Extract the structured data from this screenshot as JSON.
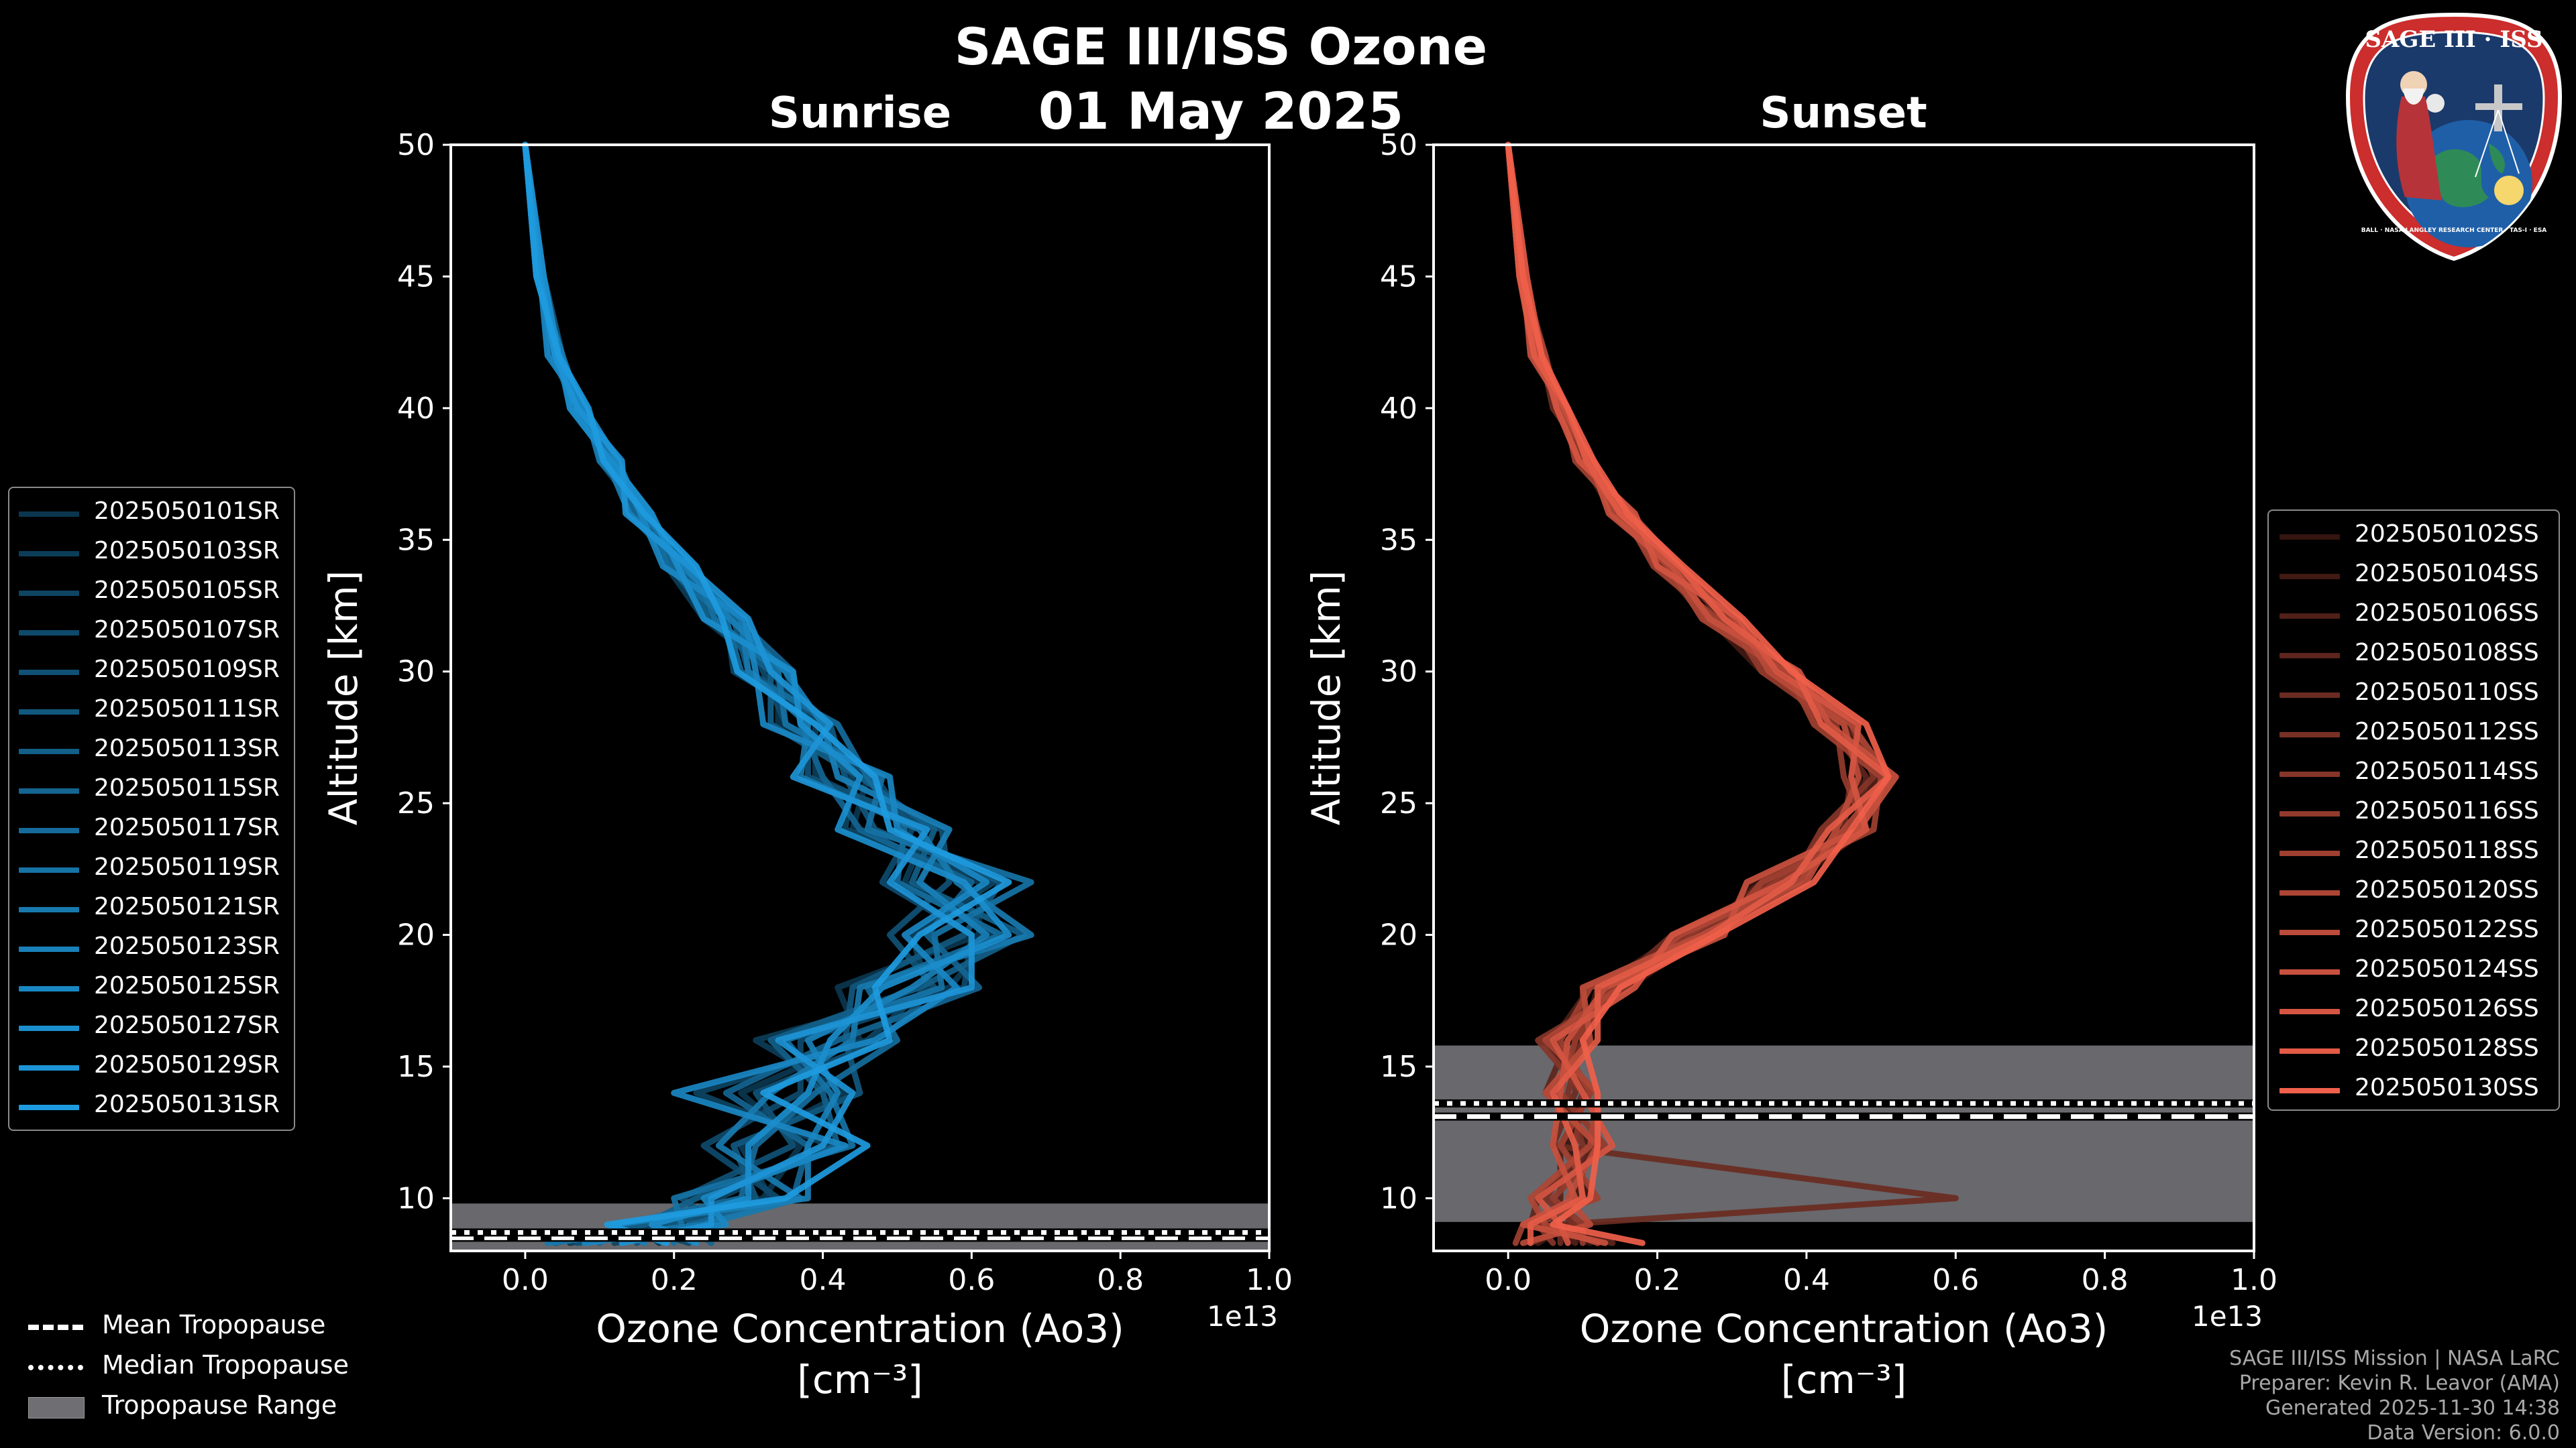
{
  "title": "SAGE III/ISS Ozone",
  "date": "01 May 2025",
  "logo": {
    "label": "SAGE III · ISS",
    "ring_text": "BALL · NASA LANGLEY RESEARCH CENTER · TAS-I · ESA"
  },
  "credits": {
    "mission": "SAGE III/ISS Mission | NASA LaRC",
    "preparer": "Preparer: Kevin R. Leavor (AMA)",
    "generated": "Generated 2025-11-30 14:38",
    "version": "Data Version: 6.0.0"
  },
  "colors": {
    "sunrise": "#1e9be0",
    "sunset": "#f0604a",
    "tropopause_fill": "#6e6e73"
  },
  "tropo_legend": [
    {
      "label": "Mean Tropopause",
      "style": "dashed"
    },
    {
      "label": "Median Tropopause",
      "style": "dotted"
    },
    {
      "label": "Tropopause Range",
      "style": "patch"
    }
  ],
  "chart_data": [
    {
      "panel": "sunrise",
      "type": "line",
      "title": "Sunrise",
      "xlabel": "Ozone Concentration (Ao3)",
      "xunit": "[cm⁻³]",
      "xscale_label": "1e13",
      "ylabel": "Altitude [km]",
      "xlim": [
        -0.1,
        1.0
      ],
      "ylim": [
        8.0,
        50.0
      ],
      "xticks": [
        "0.0",
        "0.2",
        "0.4",
        "0.6",
        "0.8",
        "1.0"
      ],
      "xtick_values": [
        0.0,
        0.2,
        0.4,
        0.6,
        0.8,
        1.0
      ],
      "yticks": [
        "10",
        "15",
        "20",
        "25",
        "30",
        "35",
        "40",
        "45",
        "50"
      ],
      "ytick_values": [
        10,
        15,
        20,
        25,
        30,
        35,
        40,
        45,
        50
      ],
      "altitudes": [
        50,
        45,
        42,
        40,
        38,
        36,
        34,
        32,
        30,
        28,
        26,
        24,
        22,
        20,
        18,
        16,
        14,
        12,
        10,
        9,
        8.3
      ],
      "mean_profile": [
        0.0,
        0.02,
        0.04,
        0.07,
        0.11,
        0.15,
        0.2,
        0.26,
        0.31,
        0.36,
        0.42,
        0.49,
        0.55,
        0.57,
        0.5,
        0.4,
        0.35,
        0.34,
        0.28,
        0.18,
        0.1
      ],
      "tropopause": {
        "range": [
          8.0,
          9.8
        ],
        "mean": 8.5,
        "median": 8.7
      },
      "series": [
        {
          "name": "2025050101SR",
          "offsets": [
            0,
            0.005,
            -0.01,
            0.01,
            0.005,
            -0.005,
            0.01,
            0.02,
            0.03,
            -0.02,
            0.04,
            -0.05,
            0.06,
            0.04,
            -0.08,
            0.05,
            -0.06,
            0.03,
            0.04,
            -0.03,
            0.08
          ]
        },
        {
          "name": "2025050103SR",
          "offsets": [
            0,
            0,
            0.01,
            -0.005,
            0.01,
            0.01,
            -0.01,
            -0.02,
            0.02,
            0.03,
            -0.03,
            0.05,
            -0.04,
            0.06,
            0.07,
            -0.09,
            0.08,
            -0.05,
            0.05,
            0.02,
            -0.04
          ]
        },
        {
          "name": "2025050105SR",
          "offsets": [
            0,
            0.005,
            0,
            0.01,
            -0.01,
            0.005,
            0.02,
            0.01,
            -0.03,
            0.04,
            0.02,
            -0.06,
            0.08,
            -0.05,
            0.04,
            0.06,
            -0.12,
            0.07,
            -0.02,
            0.05,
            0.02
          ]
        },
        {
          "name": "2025050107SR",
          "offsets": [
            0,
            -0.005,
            0.005,
            0,
            0.01,
            -0.01,
            0.005,
            0.03,
            0.01,
            -0.01,
            0.05,
            0.03,
            -0.07,
            0.03,
            0.09,
            -0.03,
            0.02,
            -0.1,
            0.06,
            -0.04,
            0.12
          ]
        },
        {
          "name": "2025050109SR",
          "offsets": [
            0,
            0,
            -0.005,
            0.005,
            0,
            0.015,
            -0.005,
            -0.01,
            0.04,
            0.02,
            -0.04,
            0.07,
            0.02,
            -0.08,
            0.05,
            0.08,
            -0.04,
            0.02,
            -0.07,
            0.08,
            -0.03
          ]
        },
        {
          "name": "2025050111SR",
          "offsets": [
            0,
            0.005,
            0.01,
            -0.01,
            0.005,
            0,
            0.015,
            0.02,
            -0.01,
            0.05,
            0.01,
            -0.02,
            0.09,
            0.02,
            -0.06,
            0.03,
            0.1,
            -0.06,
            0.03,
            0.01,
            0.05
          ]
        },
        {
          "name": "2025050113SR",
          "offsets": [
            0,
            0,
            0,
            0.005,
            -0.005,
            0.01,
            0.02,
            -0.015,
            0.02,
            -0.03,
            0.03,
            0.06,
            -0.03,
            0.1,
            0.03,
            -0.07,
            0.05,
            0.08,
            -0.05,
            -0.02,
            -0.06
          ]
        },
        {
          "name": "2025050115SR",
          "offsets": [
            0,
            -0.005,
            0.005,
            0.01,
            0.015,
            -0.005,
            0,
            0.025,
            0.05,
            0.01,
            -0.02,
            -0.04,
            0.05,
            -0.03,
            0.11,
            0.02,
            -0.08,
            0.04,
            0.08,
            0.04,
            0.15
          ]
        },
        {
          "name": "2025050117SR",
          "offsets": [
            0,
            0.005,
            -0.005,
            0,
            0.005,
            0.02,
            -0.01,
            0.01,
            -0.02,
            0.06,
            0.04,
            0.02,
            -0.05,
            0.07,
            -0.04,
            0.1,
            0.04,
            -0.03,
            0.01,
            -0.05,
            0.0
          ]
        },
        {
          "name": "2025050119SR",
          "offsets": [
            0,
            0,
            0.005,
            -0.005,
            0.01,
            0.005,
            0.025,
            -0.005,
            0.03,
            -0.01,
            0.06,
            -0.03,
            0.13,
            -0.02,
            0.06,
            -0.05,
            0.06,
            0.1,
            -0.08,
            0.03,
            0.1
          ]
        },
        {
          "name": "2025050121SR",
          "offsets": [
            0,
            0.005,
            0,
            0.01,
            -0.01,
            0.015,
            0.01,
            0.03,
            -0.01,
            0.02,
            -0.05,
            0.04,
            0.03,
            0.11,
            -0.05,
            0.04,
            -0.02,
            -0.08,
            0.09,
            0.06,
            -0.07
          ]
        },
        {
          "name": "2025050123SR",
          "offsets": [
            0,
            -0.005,
            0.01,
            0.005,
            0,
            -0.01,
            0.015,
            0.015,
            0.04,
            0.04,
            0.0,
            0.08,
            -0.02,
            0.05,
            0.02,
            -0.02,
            0.07,
            0.04,
            0.1,
            -0.06,
            0.06
          ]
        },
        {
          "name": "2025050125SR",
          "offsets": [
            0,
            0,
            -0.01,
            0.01,
            0.015,
            0.005,
            -0.015,
            0.035,
            0.0,
            -0.04,
            0.07,
            0.01,
            0.07,
            -0.06,
            0.08,
            0.07,
            -0.15,
            0.09,
            -0.04,
            0.09,
            -0.02
          ]
        },
        {
          "name": "2025050127SR",
          "offsets": [
            0,
            0.005,
            0.005,
            -0.01,
            0.005,
            0.02,
            0.005,
            -0.02,
            0.05,
            0.01,
            0.03,
            -0.07,
            0.04,
            0.08,
            -0.02,
            0.01,
            0.03,
            -0.04,
            0.02,
            -0.01,
            0.13
          ]
        },
        {
          "name": "2025050129SR",
          "offsets": [
            0,
            0,
            0,
            0,
            0.02,
            -0.015,
            0.02,
            0.04,
            0.02,
            0.05,
            -0.06,
            0.05,
            -0.06,
            0.03,
            0.1,
            -0.06,
            0.09,
            0.06,
            -0.03,
            0.07,
            0.03
          ]
        },
        {
          "name": "2025050131SR",
          "offsets": [
            0,
            -0.005,
            0.005,
            0.015,
            -0.005,
            0.01,
            0.03,
            0.005,
            -0.025,
            0.03,
            0.05,
            0.0,
            0.1,
            -0.04,
            -0.03,
            0.09,
            -0.03,
            0.12,
            0.07,
            -0.07,
            0.09
          ]
        }
      ]
    },
    {
      "panel": "sunset",
      "type": "line",
      "title": "Sunset",
      "xlabel": "Ozone Concentration (Ao3)",
      "xunit": "[cm⁻³]",
      "xscale_label": "1e13",
      "ylabel": "Altitude [km]",
      "xlim": [
        -0.1,
        1.0
      ],
      "ylim": [
        8.0,
        50.0
      ],
      "xticks": [
        "0.0",
        "0.2",
        "0.4",
        "0.6",
        "0.8",
        "1.0"
      ],
      "xtick_values": [
        0.0,
        0.2,
        0.4,
        0.6,
        0.8,
        1.0
      ],
      "yticks": [
        "10",
        "15",
        "20",
        "25",
        "30",
        "35",
        "40",
        "45",
        "50"
      ],
      "ytick_values": [
        10,
        15,
        20,
        25,
        30,
        35,
        40,
        45,
        50
      ],
      "altitudes": [
        50,
        45,
        42,
        40,
        38,
        36,
        34,
        32,
        30,
        28,
        26,
        24,
        22,
        20,
        18,
        16,
        14,
        12,
        10,
        9,
        8.3
      ],
      "mean_profile": [
        0.0,
        0.02,
        0.04,
        0.07,
        0.1,
        0.15,
        0.21,
        0.28,
        0.36,
        0.44,
        0.48,
        0.45,
        0.36,
        0.25,
        0.13,
        0.07,
        0.08,
        0.09,
        0.07,
        0.05,
        0.06
      ],
      "tropopause": {
        "range": [
          9.1,
          15.8
        ],
        "mean": 13.1,
        "median": 13.6
      },
      "series": [
        {
          "name": "2025050102SS",
          "offsets": [
            0,
            0.005,
            0,
            0.005,
            -0.005,
            0.01,
            -0.01,
            0.02,
            0.01,
            -0.02,
            0.02,
            0.01,
            -0.03,
            0.02,
            0.03,
            -0.02,
            0.02,
            -0.01,
            0.04,
            -0.02,
            0.05
          ]
        },
        {
          "name": "2025050104SS",
          "offsets": [
            0,
            0,
            0.005,
            -0.005,
            0.01,
            0.005,
            0.01,
            -0.01,
            -0.02,
            0.02,
            -0.01,
            0.03,
            0.02,
            -0.02,
            -0.01,
            0.03,
            -0.02,
            0.02,
            0.02,
            0.03,
            -0.02
          ]
        },
        {
          "name": "2025050106SS",
          "offsets": [
            0,
            -0.005,
            0,
            0.005,
            0,
            -0.01,
            0.015,
            0.01,
            0.02,
            0.01,
            0.02,
            -0.02,
            0.01,
            0.03,
            -0.02,
            -0.01,
            0.03,
            -0.02,
            0.0,
            0.01,
            0.03
          ]
        },
        {
          "name": "2025050108SS",
          "offsets": [
            0,
            0,
            -0.005,
            0.01,
            0.005,
            0.005,
            -0.005,
            -0.015,
            0.03,
            -0.01,
            0.0,
            0.02,
            -0.02,
            0.01,
            0.02,
            0.01,
            -0.03,
            0.03,
            -0.03,
            -0.02,
            0.08
          ]
        },
        {
          "name": "2025050110SS",
          "offsets": [
            0,
            0.005,
            0.005,
            -0.01,
            0.01,
            -0.005,
            0.02,
            0.005,
            -0.01,
            0.03,
            -0.02,
            0.0,
            0.03,
            -0.03,
            0.01,
            0.02,
            0.01,
            -0.03,
            0.53,
            0.02,
            0.01
          ]
        },
        {
          "name": "2025050112SS",
          "offsets": [
            0,
            0,
            0.01,
            0,
            -0.005,
            0.015,
            0.0,
            0.02,
            0.0,
            -0.02,
            0.03,
            0.02,
            -0.01,
            0.02,
            -0.03,
            0.03,
            0.0,
            0.01,
            -0.02,
            0.04,
            -0.03
          ]
        },
        {
          "name": "2025050114SS",
          "offsets": [
            0,
            -0.005,
            0,
            0.005,
            0.005,
            0.0,
            -0.01,
            -0.005,
            0.02,
            0.02,
            0.01,
            -0.03,
            0.02,
            0.0,
            0.03,
            -0.03,
            0.02,
            0.0,
            0.03,
            -0.01,
            0.0
          ]
        },
        {
          "name": "2025050116SS",
          "offsets": [
            0,
            0.005,
            -0.005,
            0,
            0.0,
            0.01,
            0.01,
            0.015,
            -0.02,
            0.0,
            -0.03,
            0.03,
            0.0,
            -0.01,
            0.01,
            0.02,
            -0.01,
            0.04,
            -0.01,
            0.05,
            0.04
          ]
        },
        {
          "name": "2025050118SS",
          "offsets": [
            0,
            0,
            0.005,
            0.005,
            -0.01,
            0.005,
            -0.015,
            0.0,
            0.015,
            -0.03,
            0.02,
            0.04,
            -0.02,
            0.03,
            -0.02,
            0.0,
            0.03,
            -0.02,
            0.05,
            -0.03,
            -0.05
          ]
        },
        {
          "name": "2025050120SS",
          "offsets": [
            0,
            -0.005,
            0.01,
            -0.005,
            0.015,
            -0.01,
            0.005,
            -0.02,
            0.01,
            0.02,
            0.03,
            0.0,
            0.03,
            -0.02,
            0.02,
            -0.02,
            0.04,
            0.02,
            -0.04,
            0.0,
            0.06
          ]
        },
        {
          "name": "2025050122SS",
          "offsets": [
            0,
            0.005,
            0,
            0.01,
            0.005,
            0.015,
            0.02,
            0.025,
            -0.01,
            0.01,
            -0.01,
            -0.01,
            0.04,
            0.01,
            -0.03,
            0.04,
            -0.03,
            0.03,
            0.01,
            0.06,
            -0.04
          ]
        },
        {
          "name": "2025050124SS",
          "offsets": [
            0,
            0,
            -0.01,
            0.005,
            0.01,
            -0.015,
            0.01,
            -0.01,
            0.03,
            -0.01,
            0.04,
            0.02,
            -0.04,
            0.04,
            0.0,
            0.01,
            -0.01,
            -0.03,
            0.02,
            -0.03,
            0.07
          ]
        },
        {
          "name": "2025050126SS",
          "offsets": [
            0,
            0.005,
            0.005,
            -0.005,
            -0.005,
            0.02,
            -0.01,
            0.03,
            0.0,
            0.03,
            -0.02,
            0.03,
            0.01,
            -0.03,
            0.04,
            -0.01,
            0.02,
            0.05,
            -0.03,
            0.02,
            0.02
          ]
        },
        {
          "name": "2025050128SS",
          "offsets": [
            0,
            -0.005,
            -0.005,
            0.01,
            0.005,
            0.0,
            0.02,
            0.01,
            0.025,
            -0.02,
            0.03,
            -0.02,
            0.02,
            0.02,
            -0.01,
            0.05,
            -0.02,
            0.0,
            0.03,
            -0.02,
            -0.03
          ]
        },
        {
          "name": "2025050130SS",
          "offsets": [
            0,
            0,
            0.005,
            0.01,
            0.015,
            0.01,
            0.025,
            0.035,
            0.02,
            0.04,
            0.03,
            0.01,
            0.05,
            0.03,
            0.02,
            0.03,
            0.04,
            0.03,
            0.04,
            0.01,
            0.12
          ]
        }
      ]
    }
  ]
}
